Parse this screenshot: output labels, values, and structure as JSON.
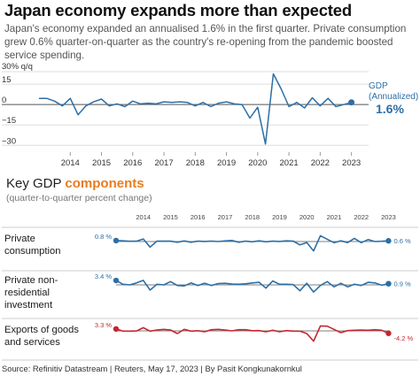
{
  "headline": "Japan economy expands more than expected",
  "subtitle": "Japan's economy expanded an annualised 1.6% in the first quarter. Private consumption grew 0.6% quarter-on-quarter as the country's re-opening from the pandemic boosted service spending.",
  "section": {
    "title_prefix": "Key GDP ",
    "title_accent": "components",
    "subtitle": "(quarter-to-quarter percent change)"
  },
  "source": "Source: Refinitiv Datastream | Reuters, May 17, 2023 | By Pasit Kongkunakornkul",
  "colors": {
    "blue": "#2c6fa6",
    "red": "#c6262e",
    "orange": "#e87d1e",
    "grid": "#dddddd",
    "zero": "#555555"
  },
  "chart_data": [
    {
      "type": "line",
      "ylabel": "30% q/q",
      "yticks": [
        15,
        0,
        -15,
        -30
      ],
      "ytick_labels": [
        "15",
        "0",
        "−15",
        "−30"
      ],
      "ylim": [
        -35,
        30
      ],
      "xlim": [
        2013.0,
        2023.55
      ],
      "xticks": [
        2014,
        2015,
        2016,
        2017,
        2018,
        2019,
        2020,
        2021,
        2022,
        2023
      ],
      "xtick_labels": [
        "2014",
        "2015",
        "2016",
        "2017",
        "2018",
        "2019",
        "2020",
        "2021",
        "2022",
        "2023"
      ],
      "grid": "horizontal",
      "series": [
        {
          "name": "GDP (Annualized)",
          "label_line1": "GDP",
          "label_line2": "(Annualized)",
          "color": "#2c6fa6",
          "end_label": "1.6%",
          "x": [
            2013.0,
            2013.25,
            2013.5,
            2013.75,
            2014.0,
            2014.25,
            2014.5,
            2014.75,
            2015.0,
            2015.25,
            2015.5,
            2015.75,
            2016.0,
            2016.25,
            2016.5,
            2016.75,
            2017.0,
            2017.25,
            2017.5,
            2017.75,
            2018.0,
            2018.25,
            2018.5,
            2018.75,
            2019.0,
            2019.25,
            2019.5,
            2019.75,
            2020.0,
            2020.25,
            2020.5,
            2020.75,
            2021.0,
            2021.25,
            2021.5,
            2021.75,
            2022.0,
            2022.25,
            2022.5,
            2022.75,
            2023.0
          ],
          "values": [
            4.5,
            4.5,
            2.5,
            -1.0,
            4.5,
            -7.5,
            -1.0,
            2.0,
            4.0,
            -1.0,
            0.5,
            -1.5,
            2.5,
            0.5,
            1.0,
            0.5,
            2.0,
            1.5,
            2.0,
            1.5,
            -1.0,
            1.5,
            -1.5,
            1.0,
            2.0,
            0.5,
            0.0,
            -10.0,
            -2.0,
            -29.0,
            22.5,
            11.5,
            -1.5,
            1.5,
            -2.5,
            5.0,
            -1.0,
            4.5,
            -1.5,
            0.0,
            1.6
          ]
        }
      ]
    },
    {
      "type": "line",
      "xlim": [
        2013.0,
        2023.05
      ],
      "xticks": [
        2014,
        2015,
        2016,
        2017,
        2018,
        2019,
        2020,
        2021,
        2022,
        2023
      ],
      "xtick_labels": [
        "2014",
        "2015",
        "2016",
        "2017",
        "2018",
        "2019",
        "2020",
        "2021",
        "2022",
        "2023"
      ],
      "rows": [
        {
          "label": [
            "Private",
            "consumption"
          ],
          "color": "#2c6fa6",
          "ylim": [
            -10,
            7
          ],
          "start_label": "0.8 %",
          "end_label": "0.6 %",
          "x": [
            2013.0,
            2013.25,
            2013.5,
            2013.75,
            2014.0,
            2014.25,
            2014.5,
            2014.75,
            2015.0,
            2015.25,
            2015.5,
            2015.75,
            2016.0,
            2016.25,
            2016.5,
            2016.75,
            2017.0,
            2017.25,
            2017.5,
            2017.75,
            2018.0,
            2018.25,
            2018.5,
            2018.75,
            2019.0,
            2019.25,
            2019.5,
            2019.75,
            2020.0,
            2020.25,
            2020.5,
            2020.75,
            2021.0,
            2021.25,
            2021.5,
            2021.75,
            2022.0,
            2022.25,
            2022.5,
            2022.75,
            2023.0
          ],
          "values": [
            0.8,
            0.6,
            0.2,
            0.3,
            2.2,
            -4.8,
            0.4,
            0.3,
            0.3,
            -0.6,
            0.5,
            -0.6,
            0.3,
            0.1,
            0.4,
            0.0,
            0.5,
            0.9,
            -0.6,
            0.3,
            -0.2,
            0.6,
            -0.2,
            0.3,
            0.1,
            0.6,
            0.4,
            -2.9,
            -0.8,
            -8.0,
            5.0,
            2.0,
            -1.0,
            0.6,
            -0.9,
            2.7,
            -1.0,
            1.7,
            0.0,
            0.2,
            0.6
          ]
        },
        {
          "label": [
            "Private non-",
            "residential",
            "investment"
          ],
          "color": "#2c6fa6",
          "ylim": [
            -9,
            8
          ],
          "start_label": "3.4 %",
          "end_label": "0.9 %",
          "x": [
            2013.0,
            2013.25,
            2013.5,
            2013.75,
            2014.0,
            2014.25,
            2014.5,
            2014.75,
            2015.0,
            2015.25,
            2015.5,
            2015.75,
            2016.0,
            2016.25,
            2016.5,
            2016.75,
            2017.0,
            2017.25,
            2017.5,
            2017.75,
            2018.0,
            2018.25,
            2018.5,
            2018.75,
            2019.0,
            2019.25,
            2019.5,
            2019.75,
            2020.0,
            2020.25,
            2020.5,
            2020.75,
            2021.0,
            2021.25,
            2021.5,
            2021.75,
            2022.0,
            2022.25,
            2022.5,
            2022.75,
            2023.0
          ],
          "values": [
            3.4,
            0.5,
            0.0,
            1.5,
            3.5,
            -4.0,
            0.5,
            0.0,
            2.5,
            -0.5,
            -0.8,
            1.5,
            -0.5,
            1.3,
            -0.5,
            1.0,
            1.2,
            0.7,
            0.5,
            0.8,
            1.5,
            2.0,
            -2.5,
            3.0,
            0.5,
            0.5,
            0.2,
            -4.5,
            1.2,
            -5.5,
            -0.5,
            2.5,
            -1.5,
            1.2,
            -1.5,
            0.5,
            -0.5,
            2.0,
            1.5,
            -0.3,
            0.9
          ]
        },
        {
          "label": [
            "Exports of goods",
            "and services"
          ],
          "color": "#c6262e",
          "ylim": [
            -20,
            13
          ],
          "start_label": "3.3 %",
          "end_label": "-4.2 %",
          "x": [
            2013.0,
            2013.25,
            2013.5,
            2013.75,
            2014.0,
            2014.25,
            2014.5,
            2014.75,
            2015.0,
            2015.25,
            2015.5,
            2015.75,
            2016.0,
            2016.25,
            2016.5,
            2016.75,
            2017.0,
            2017.25,
            2017.5,
            2017.75,
            2018.0,
            2018.25,
            2018.5,
            2018.75,
            2019.0,
            2019.25,
            2019.5,
            2019.75,
            2020.0,
            2020.25,
            2020.5,
            2020.75,
            2021.0,
            2021.25,
            2021.5,
            2021.75,
            2022.0,
            2022.25,
            2022.5,
            2022.75,
            2023.0
          ],
          "values": [
            3.3,
            -0.5,
            -0.5,
            -0.2,
            5.5,
            -0.5,
            1.5,
            2.5,
            1.5,
            -4.5,
            2.5,
            -0.5,
            0.3,
            -1.5,
            2.0,
            2.5,
            1.5,
            0.0,
            2.0,
            2.0,
            0.3,
            0.5,
            -1.5,
            1.0,
            -1.5,
            0.5,
            -0.5,
            -0.5,
            -4.5,
            -17.5,
            8.5,
            8.0,
            2.5,
            -3.0,
            0.5,
            1.0,
            1.5,
            1.0,
            2.0,
            1.0,
            -4.2
          ]
        }
      ]
    }
  ]
}
